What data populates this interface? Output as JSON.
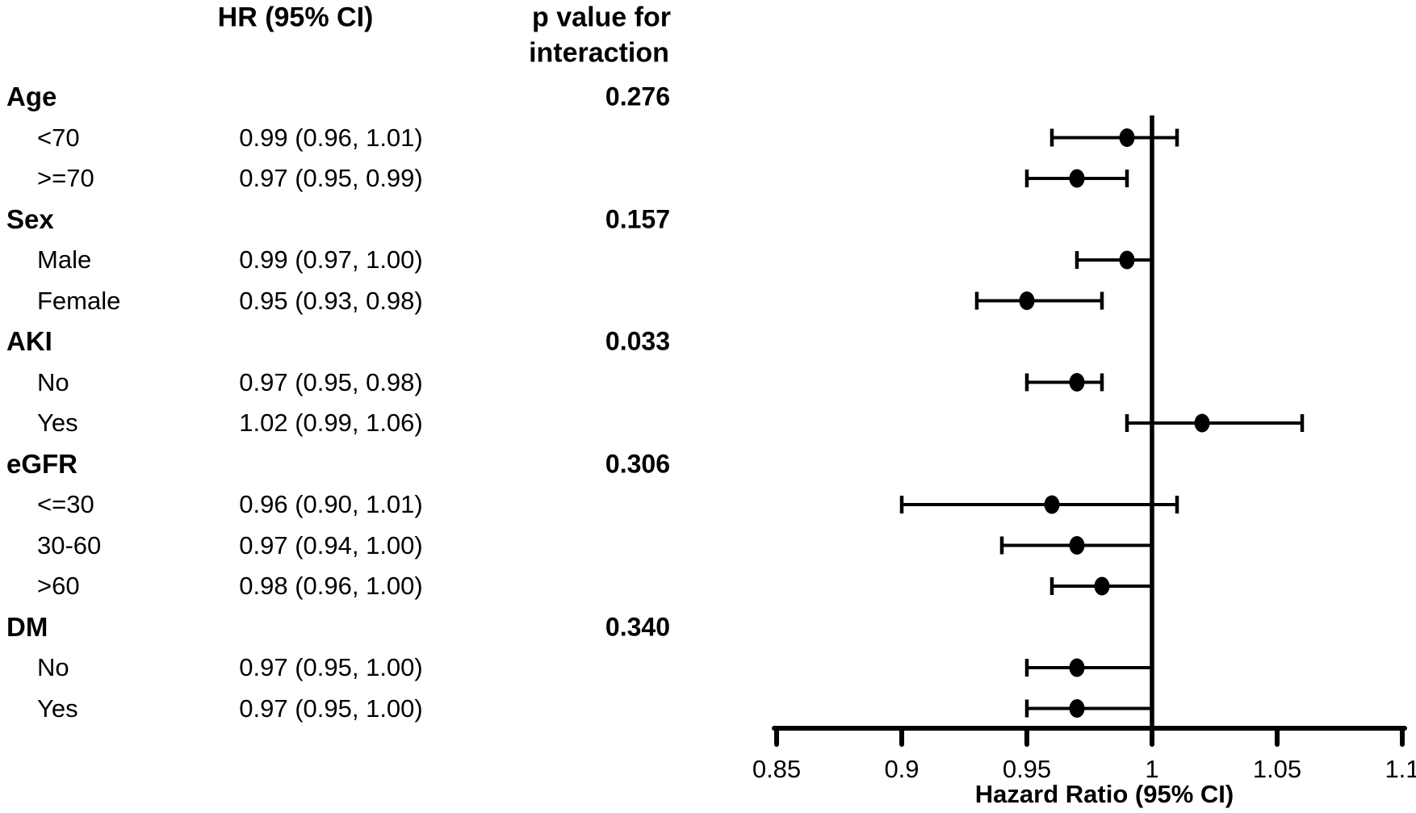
{
  "figure_title": "Forest plot of hazard ratios by subgroup",
  "table": {
    "hr_column_header": "HR (95% CI)",
    "p_column_header_line1": "p value for",
    "p_column_header_line2": "interaction"
  },
  "chart_data": {
    "type": "forest",
    "xlabel": "Hazard Ratio (95% CI)",
    "xlim": [
      0.85,
      1.1
    ],
    "xticks": [
      0.85,
      0.9,
      0.95,
      1,
      1.05,
      1.1
    ],
    "xtick_labels": [
      "0.85",
      "0.9",
      "0.95",
      "1",
      "1.05",
      "1.1"
    ],
    "reference_line": 1,
    "grid": false,
    "marker_color": "#000000",
    "rows": [
      {
        "type": "group",
        "label": "Age",
        "p_value": "0.276"
      },
      {
        "type": "item",
        "label": "<70",
        "hr_text": "0.99 (0.96, 1.01)",
        "hr": 0.99,
        "lo": 0.96,
        "hi": 1.01
      },
      {
        "type": "item",
        "label": ">=70",
        "hr_text": "0.97 (0.95, 0.99)",
        "hr": 0.97,
        "lo": 0.95,
        "hi": 0.99
      },
      {
        "type": "group",
        "label": "Sex",
        "p_value": "0.157"
      },
      {
        "type": "item",
        "label": "Male",
        "hr_text": "0.99 (0.97, 1.00)",
        "hr": 0.99,
        "lo": 0.97,
        "hi": 1.0
      },
      {
        "type": "item",
        "label": "Female",
        "hr_text": "0.95 (0.93, 0.98)",
        "hr": 0.95,
        "lo": 0.93,
        "hi": 0.98
      },
      {
        "type": "group",
        "label": "AKI",
        "p_value": "0.033"
      },
      {
        "type": "item",
        "label": "No",
        "hr_text": "0.97 (0.95, 0.98)",
        "hr": 0.97,
        "lo": 0.95,
        "hi": 0.98
      },
      {
        "type": "item",
        "label": "Yes",
        "hr_text": "1.02 (0.99, 1.06)",
        "hr": 1.02,
        "lo": 0.99,
        "hi": 1.06
      },
      {
        "type": "group",
        "label": "eGFR",
        "p_value": "0.306"
      },
      {
        "type": "item",
        "label": "<=30",
        "hr_text": "0.96 (0.90, 1.01)",
        "hr": 0.96,
        "lo": 0.9,
        "hi": 1.01
      },
      {
        "type": "item",
        "label": "30-60",
        "hr_text": "0.97 (0.94, 1.00)",
        "hr": 0.97,
        "lo": 0.94,
        "hi": 1.0
      },
      {
        "type": "item",
        "label": ">60",
        "hr_text": "0.98 (0.96, 1.00)",
        "hr": 0.98,
        "lo": 0.96,
        "hi": 1.0
      },
      {
        "type": "group",
        "label": "DM",
        "p_value": "0.340"
      },
      {
        "type": "item",
        "label": "No",
        "hr_text": "0.97 (0.95, 1.00)",
        "hr": 0.97,
        "lo": 0.95,
        "hi": 1.0
      },
      {
        "type": "item",
        "label": "Yes",
        "hr_text": "0.97 (0.95, 1.00)",
        "hr": 0.97,
        "lo": 0.95,
        "hi": 1.0
      }
    ]
  }
}
